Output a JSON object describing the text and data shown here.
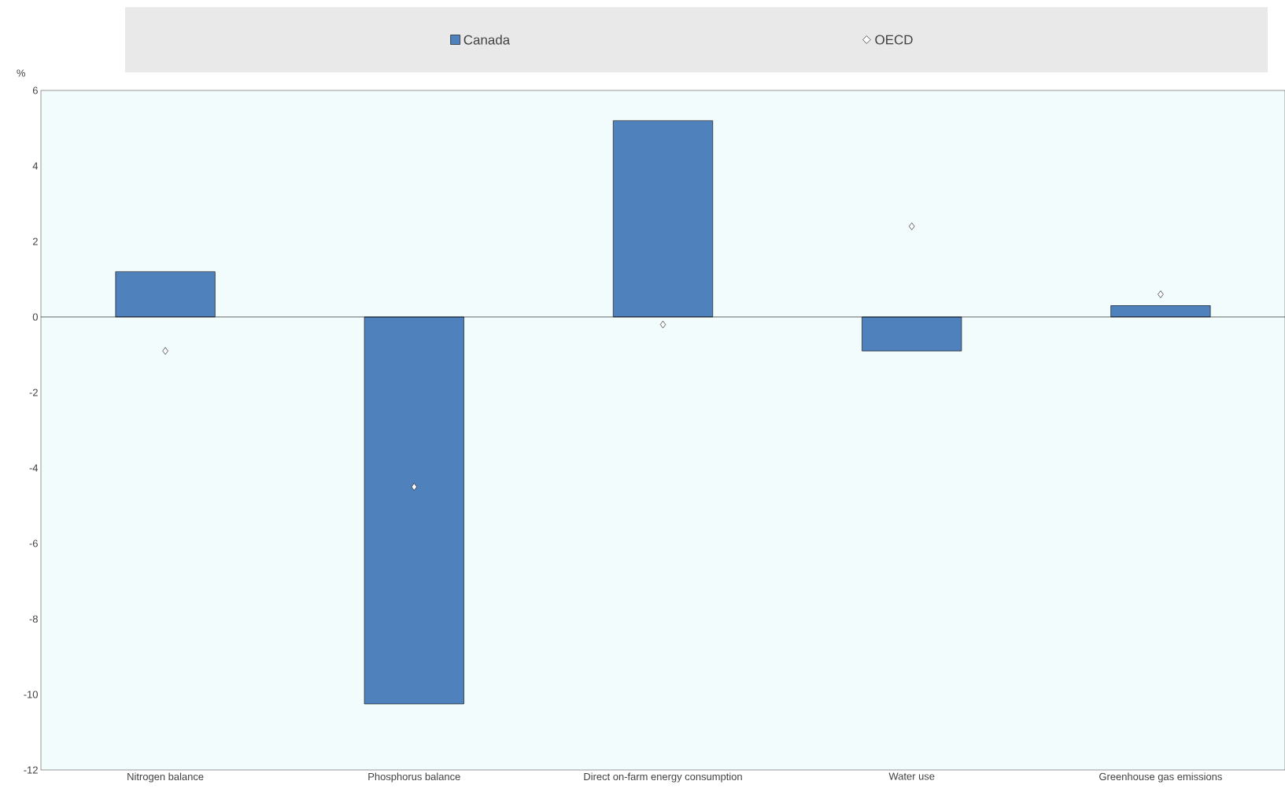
{
  "chart_data": {
    "type": "bar",
    "ylabel": "%",
    "categories": [
      "Nitrogen balance",
      "Phosphorus balance",
      "Direct on-farm energy consumption",
      "Water use",
      "Greenhouse gas emissions"
    ],
    "series": [
      {
        "name": "Canada",
        "color": "#4f81bd",
        "values": [
          1.2,
          -10.25,
          5.2,
          -0.9,
          0.3
        ]
      },
      {
        "name": "OECD",
        "type": "scatter",
        "color": "#ffffff",
        "marker": "diamond",
        "values": [
          -0.9,
          -4.5,
          -0.2,
          2.4,
          0.6
        ]
      }
    ],
    "ylim": [
      -12,
      6
    ],
    "yticks": [
      -12,
      -10,
      -8,
      -6,
      -4,
      -2,
      0,
      2,
      4,
      6
    ],
    "legend": "top"
  }
}
